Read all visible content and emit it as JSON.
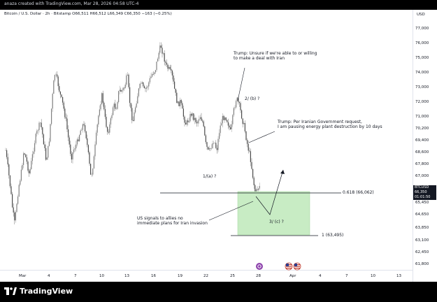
{
  "header": {
    "caption": "anaza created with TradingView.com, Mar 28, 2026 04:58 UTC-4"
  },
  "symbol": {
    "title": "Bitcoin / U.S. Dollar · 2h · Bitstamp  O66,511  H66,512  L66,349  C66,350  −163 (−0.25%)"
  },
  "annotations": {
    "trump_unsure": [
      "Trump: Unsure if we're able to or willing",
      "to make a deal with Iran"
    ],
    "trump_pause": [
      "Trump: Per Iranian Government request,",
      "I am pausing energy plant destruction by 10 days"
    ],
    "us_signals": [
      "US signals to allies no",
      "immediate plans for Iran invasion"
    ],
    "wave_2b": "2/ (b) ?",
    "wave_1a": "1/(a) ?",
    "wave_3c": "3/ (c) ?",
    "fib_0618": "0.618 (66,062)",
    "fib_1": "1 (63,495)"
  },
  "price_axis": {
    "currency": "USD",
    "labels": [
      "77,000",
      "76,000",
      "75,000",
      "74,000",
      "73,000",
      "72,000",
      "71,000",
      "70,200",
      "69,400",
      "68,600",
      "67,800",
      "67,000",
      "66,200",
      "65,450",
      "64,650",
      "63,850",
      "63,100",
      "62,450",
      "61,800"
    ]
  },
  "last_price": {
    "symbol": "BTCUSD",
    "price": "66,350",
    "countdown": "01:01:50"
  },
  "time_axis": {
    "labels": [
      "Mar",
      "4",
      "7",
      "10",
      "13",
      "16",
      "19",
      "22",
      "25",
      "28",
      "Apr",
      "4",
      "7",
      "10",
      "13"
    ]
  },
  "footer": {
    "brand": "TradingView"
  },
  "colors": {
    "candle_up": "#7f7f7f",
    "candle_down": "#4a4a4a",
    "target_box": "#c8ecc4",
    "line": "#131722"
  }
}
